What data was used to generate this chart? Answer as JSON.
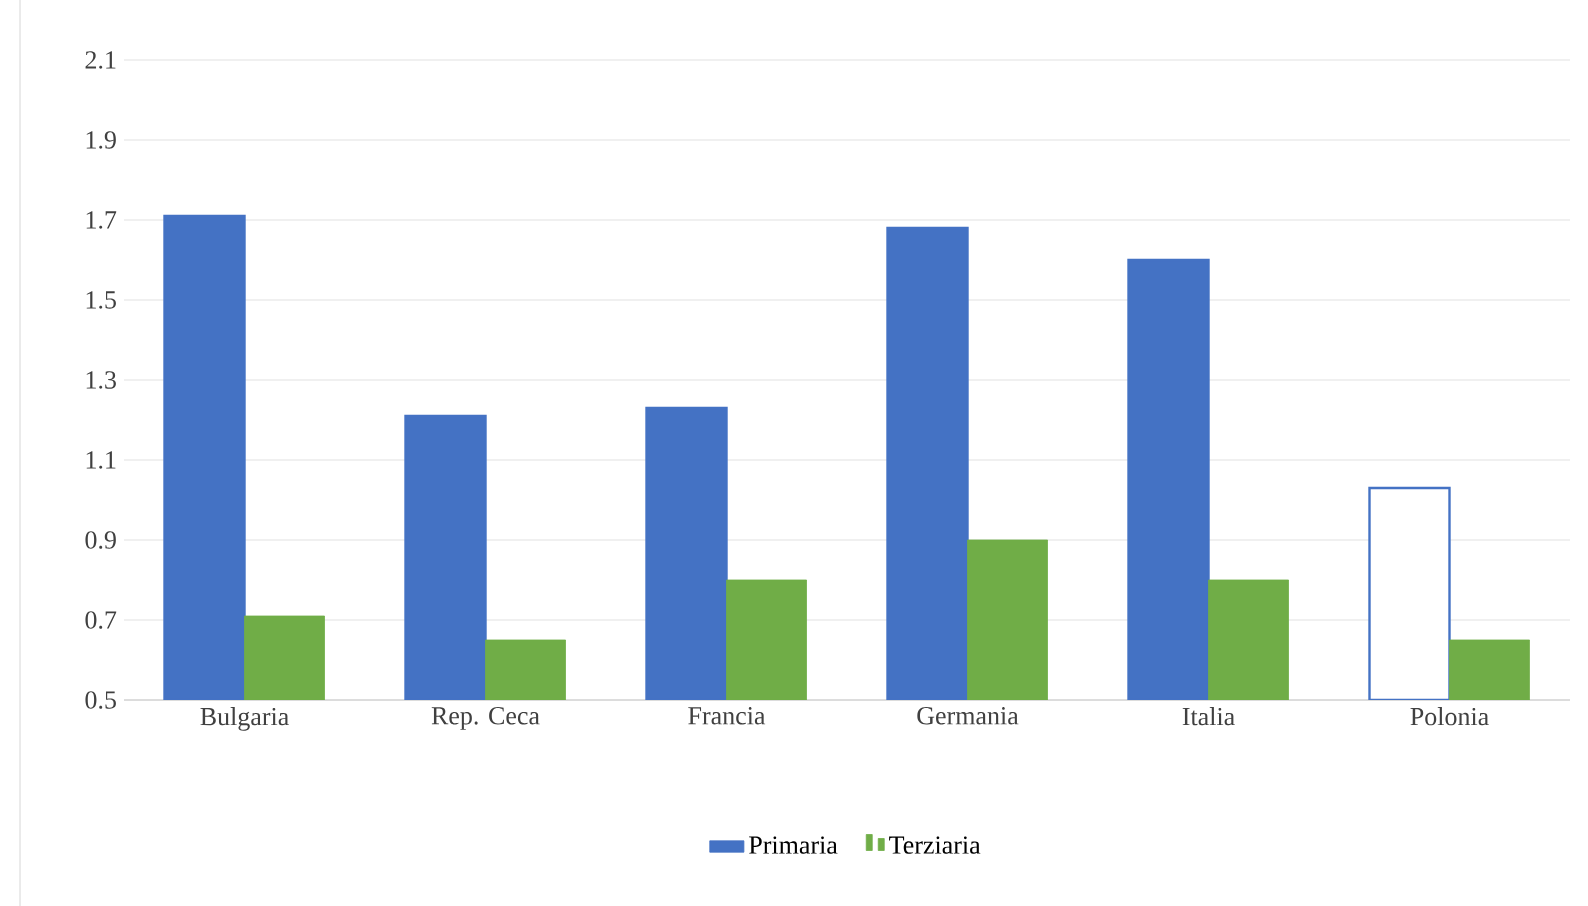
{
  "chart_data": {
    "type": "bar",
    "categories": [
      "Bulgaria",
      "Rep. Ceca",
      "Francia",
      "Germania",
      "Italia",
      "Polonia"
    ],
    "series": [
      {
        "name": "Primaria",
        "color": "#4472c4",
        "colors": [
          "#4472c4",
          "#4472c4",
          "#4472c4",
          "#4472c4",
          "#4472c4",
          "#ffffff"
        ],
        "values": [
          1.71,
          1.21,
          1.23,
          1.68,
          1.6,
          1.03
        ]
      },
      {
        "name": "Terziaria",
        "color": "#70ad47",
        "values": [
          0.71,
          0.65,
          0.8,
          0.9,
          0.8,
          0.65
        ]
      }
    ],
    "ylim": [
      0.5,
      2.1
    ],
    "yticks": [
      0.5,
      0.7,
      0.9,
      1.1,
      1.3,
      1.5,
      1.7,
      1.9,
      2.1
    ],
    "grid": "y",
    "legend": "bottom"
  }
}
